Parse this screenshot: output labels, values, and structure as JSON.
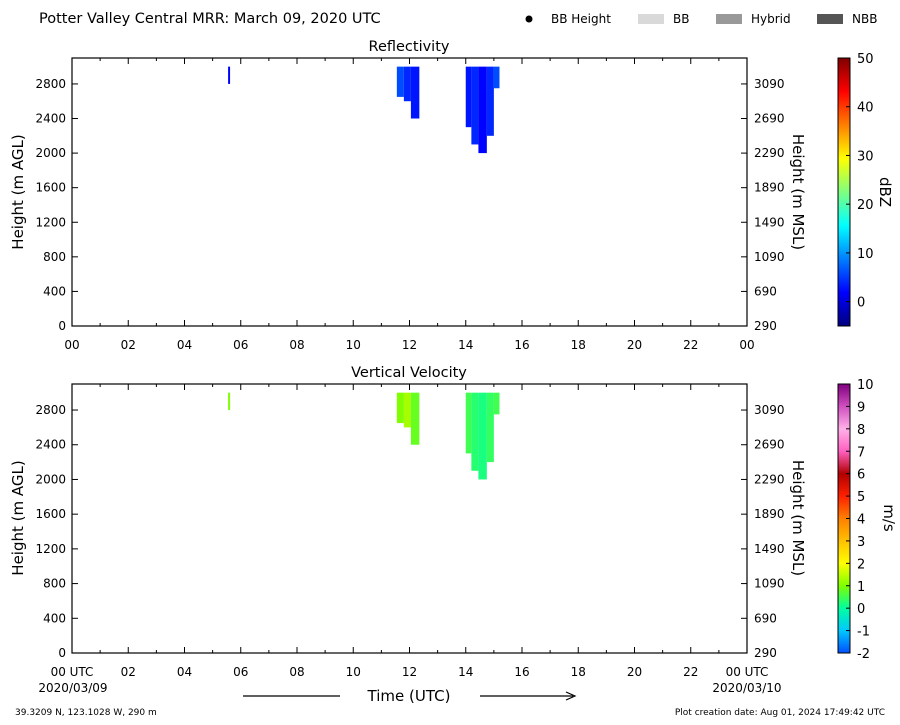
{
  "header": {
    "title": "Potter Valley Central MRR:  March 09, 2020 UTC",
    "legend": [
      {
        "label": "BB Height",
        "kind": "dot",
        "color": "#000000"
      },
      {
        "label": "BB",
        "kind": "swatch",
        "color": "#d9d9d9"
      },
      {
        "label": "Hybrid",
        "kind": "swatch",
        "color": "#999999"
      },
      {
        "label": "NBB",
        "kind": "swatch",
        "color": "#555555"
      }
    ]
  },
  "footer": {
    "location": "39.3209 N, 123.1028 W, 290 m",
    "creation": "Plot creation date: Aug 01, 2024 17:49:42 UTC",
    "xlabel": "Time (UTC)",
    "start_date": "2020/03/09",
    "end_date": "2020/03/10"
  },
  "chart_data": [
    {
      "type": "heatmap",
      "title": "Reflectivity",
      "ylabel": "Height (m AGL)",
      "ylabel_right": "Height (m MSL)",
      "x_ticks": [
        "00",
        "02",
        "04",
        "06",
        "08",
        "10",
        "12",
        "14",
        "16",
        "18",
        "20",
        "22",
        "00"
      ],
      "xlim": [
        0,
        24
      ],
      "ylim": [
        0,
        3100
      ],
      "y_ticks": [
        0,
        400,
        800,
        1200,
        1600,
        2000,
        2400,
        2800
      ],
      "y_ticks_right": [
        290,
        690,
        1090,
        1490,
        1890,
        2290,
        2690,
        3090
      ],
      "colorbar": {
        "label": "dBZ",
        "min": -5,
        "max": 50,
        "ticks": [
          0,
          10,
          20,
          30,
          40,
          50
        ],
        "colors": [
          "#00007f",
          "#0000ff",
          "#007fff",
          "#00ffff",
          "#7fff7f",
          "#ffff00",
          "#ff7f00",
          "#ff0000",
          "#7f0000"
        ]
      },
      "echoes": [
        {
          "t0": 5.55,
          "t1": 5.62,
          "top": 3000,
          "bottom": 2800,
          "value": 2
        },
        {
          "t0": 11.55,
          "t1": 11.8,
          "top": 3000,
          "bottom": 2650,
          "value": 6
        },
        {
          "t0": 11.8,
          "t1": 12.05,
          "top": 3000,
          "bottom": 2600,
          "value": 4
        },
        {
          "t0": 12.05,
          "t1": 12.35,
          "top": 3000,
          "bottom": 2400,
          "value": 3
        },
        {
          "t0": 14.0,
          "t1": 14.2,
          "top": 3000,
          "bottom": 2300,
          "value": 3
        },
        {
          "t0": 14.2,
          "t1": 14.45,
          "top": 3000,
          "bottom": 2100,
          "value": 4
        },
        {
          "t0": 14.45,
          "t1": 14.75,
          "top": 3000,
          "bottom": 2000,
          "value": 2
        },
        {
          "t0": 14.75,
          "t1": 15.0,
          "top": 3000,
          "bottom": 2200,
          "value": 4
        },
        {
          "t0": 15.0,
          "t1": 15.2,
          "top": 3000,
          "bottom": 2750,
          "value": 6
        }
      ]
    },
    {
      "type": "heatmap",
      "title": "Vertical Velocity",
      "ylabel": "Height (m AGL)",
      "ylabel_right": "Height (m MSL)",
      "x_ticks": [
        "00 UTC",
        "02",
        "04",
        "06",
        "08",
        "10",
        "12",
        "14",
        "16",
        "18",
        "20",
        "22",
        "00 UTC"
      ],
      "xlim": [
        0,
        24
      ],
      "ylim": [
        0,
        3100
      ],
      "y_ticks": [
        0,
        400,
        800,
        1200,
        1600,
        2000,
        2400,
        2800
      ],
      "y_ticks_right": [
        290,
        690,
        1090,
        1490,
        1890,
        2290,
        2690,
        3090
      ],
      "colorbar": {
        "label": "m/s",
        "min": -2,
        "max": 10,
        "ticks": [
          -2,
          -1,
          0,
          1,
          2,
          3,
          4,
          5,
          6,
          7,
          8,
          9,
          10
        ],
        "colors": [
          "#0050ff",
          "#00c8ff",
          "#00ffa0",
          "#7fff00",
          "#ffff00",
          "#ffc000",
          "#ff8000",
          "#ff2000",
          "#b00000",
          "#ff60c0",
          "#ffb0e8",
          "#d050c0",
          "#800080"
        ]
      },
      "echoes": [
        {
          "t0": 5.55,
          "t1": 5.62,
          "top": 3000,
          "bottom": 2800,
          "value": 1
        },
        {
          "t0": 11.55,
          "t1": 11.8,
          "top": 3000,
          "bottom": 2650,
          "value": 1
        },
        {
          "t0": 11.8,
          "t1": 12.05,
          "top": 3000,
          "bottom": 2600,
          "value": 1.3
        },
        {
          "t0": 12.05,
          "t1": 12.35,
          "top": 3000,
          "bottom": 2400,
          "value": 0.8
        },
        {
          "t0": 14.0,
          "t1": 14.2,
          "top": 3000,
          "bottom": 2300,
          "value": 0.5
        },
        {
          "t0": 14.2,
          "t1": 14.45,
          "top": 3000,
          "bottom": 2100,
          "value": 0.3
        },
        {
          "t0": 14.45,
          "t1": 14.75,
          "top": 3000,
          "bottom": 2000,
          "value": 0.2
        },
        {
          "t0": 14.75,
          "t1": 15.0,
          "top": 3000,
          "bottom": 2200,
          "value": 0.4
        },
        {
          "t0": 15.0,
          "t1": 15.2,
          "top": 3000,
          "bottom": 2750,
          "value": 0.5
        }
      ]
    }
  ]
}
